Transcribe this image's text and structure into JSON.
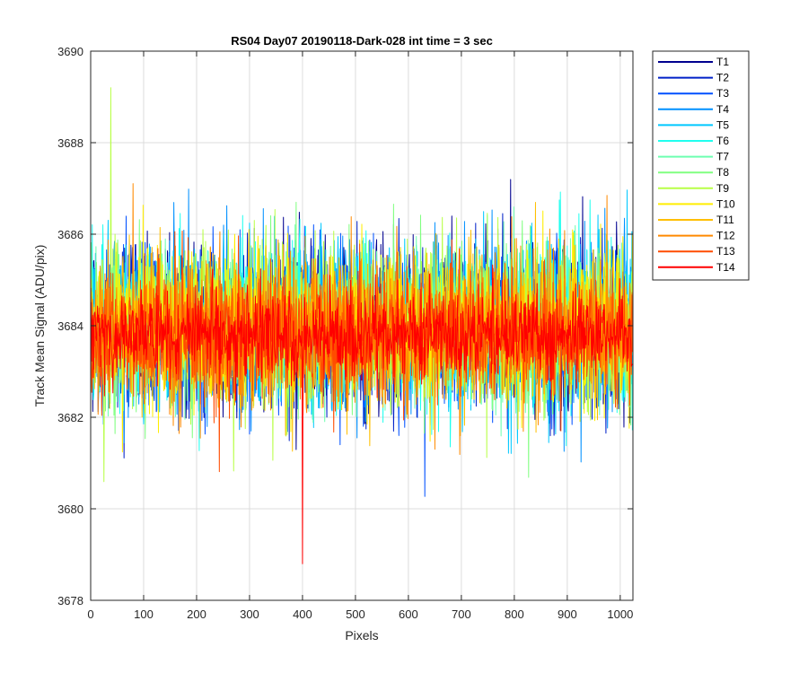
{
  "chart_data": {
    "type": "line",
    "title": "RS04 Day07 20190118-Dark-028 int time = 3 sec",
    "xlabel": "Pixels",
    "ylabel": "Track Mean Signal (ADU/pix)",
    "xlim": [
      0,
      1024
    ],
    "ylim": [
      3678,
      3690
    ],
    "xticks": [
      0,
      100,
      200,
      300,
      400,
      500,
      600,
      700,
      800,
      900,
      1000
    ],
    "yticks": [
      3678,
      3680,
      3682,
      3684,
      3686,
      3688,
      3690
    ],
    "grid": true,
    "legend_location": "outside-top-right",
    "n_points": 1024,
    "series": [
      {
        "name": "T1",
        "color": "#00008f",
        "mean": 3684.0,
        "noise_amplitude": 2.3
      },
      {
        "name": "T2",
        "color": "#0020c8",
        "mean": 3684.0,
        "noise_amplitude": 2.3
      },
      {
        "name": "T3",
        "color": "#0050ff",
        "mean": 3684.0,
        "noise_amplitude": 2.3
      },
      {
        "name": "T4",
        "color": "#0090ff",
        "mean": 3684.0,
        "noise_amplitude": 2.3
      },
      {
        "name": "T5",
        "color": "#00c8ff",
        "mean": 3684.0,
        "noise_amplitude": 2.3
      },
      {
        "name": "T6",
        "color": "#20ffef",
        "mean": 3684.0,
        "noise_amplitude": 2.3
      },
      {
        "name": "T7",
        "color": "#6effb0",
        "mean": 3684.0,
        "noise_amplitude": 2.2
      },
      {
        "name": "T8",
        "color": "#80ff80",
        "mean": 3684.0,
        "noise_amplitude": 2.2
      },
      {
        "name": "T9",
        "color": "#b8ff47",
        "mean": 3684.0,
        "noise_amplitude": 2.2
      },
      {
        "name": "T10",
        "color": "#ffee00",
        "mean": 3684.0,
        "noise_amplitude": 2.2
      },
      {
        "name": "T11",
        "color": "#ffbf00",
        "mean": 3683.9,
        "noise_amplitude": 2.1
      },
      {
        "name": "T12",
        "color": "#ff8a00",
        "mean": 3683.9,
        "noise_amplitude": 2.1
      },
      {
        "name": "T13",
        "color": "#ff4c00",
        "mean": 3683.8,
        "noise_amplitude": 1.8
      },
      {
        "name": "T14",
        "color": "#ff0000",
        "mean": 3683.8,
        "noise_amplitude": 1.2
      }
    ],
    "annotations": [
      {
        "series": "T9",
        "x": 38,
        "y": 3689.2,
        "note": "highest spike"
      },
      {
        "series": "T14",
        "x": 400,
        "y": 3678.8,
        "note": "lowest dip"
      }
    ]
  }
}
